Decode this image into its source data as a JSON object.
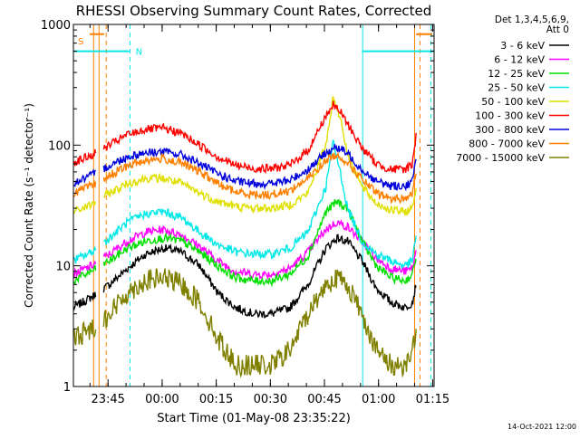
{
  "chart_data": {
    "type": "line",
    "title": "RHESSI Observing Summary Count Rates, Corrected",
    "xlabel": "Start Time (01-May-08 23:35:22)",
    "ylabel": "Corrected Count Rate (s⁻¹ detector⁻¹)",
    "yscale": "log",
    "ylim": [
      1,
      1000
    ],
    "xlim_minutes_after_start": [
      0,
      100
    ],
    "x_ticks": [
      {
        "label": "23:45",
        "t": 9.6
      },
      {
        "label": "00:00",
        "t": 24.6
      },
      {
        "label": "00:15",
        "t": 39.6
      },
      {
        "label": "00:30",
        "t": 54.6
      },
      {
        "label": "00:45",
        "t": 69.6
      },
      {
        "label": "01:00",
        "t": 84.6
      },
      {
        "label": "01:15",
        "t": 99.6
      }
    ],
    "y_ticks": [
      "1",
      "10",
      "100",
      "1000"
    ],
    "legend_header": [
      "Det 1,3,4,5,6,9,",
      "Att 0"
    ],
    "legend_position": "right",
    "series": [
      {
        "name": "3 - 6 keV",
        "color": "#000000",
        "t": [
          0,
          5,
          10,
          15,
          20,
          25,
          30,
          35,
          40,
          45,
          50,
          55,
          60,
          65,
          70,
          73,
          76,
          80,
          84,
          88,
          92,
          94,
          95
        ],
        "values": [
          4.5,
          5.5,
          7,
          9.5,
          12.5,
          14,
          13,
          10,
          6,
          4.5,
          4,
          4,
          4.5,
          7,
          14,
          17,
          16,
          11,
          6.5,
          5,
          4.5,
          5,
          7
        ]
      },
      {
        "name": "6 - 12 keV",
        "color": "#ff00ff",
        "t": [
          0,
          5,
          10,
          15,
          20,
          25,
          30,
          35,
          40,
          45,
          50,
          55,
          60,
          65,
          70,
          73,
          76,
          80,
          84,
          88,
          92,
          94,
          95
        ],
        "values": [
          8.5,
          10,
          12.5,
          16,
          19,
          20,
          18,
          14.5,
          11,
          9,
          8.5,
          8.5,
          9.5,
          13,
          20,
          23,
          21,
          16,
          11.5,
          9.5,
          9,
          9.5,
          13
        ]
      },
      {
        "name": "12 - 25 keV",
        "color": "#00e000",
        "t": [
          0,
          5,
          10,
          15,
          20,
          25,
          30,
          35,
          40,
          45,
          50,
          55,
          60,
          65,
          70,
          73,
          76,
          80,
          84,
          88,
          92,
          94,
          95
        ],
        "values": [
          7.5,
          9,
          11,
          14,
          16,
          17,
          16,
          13,
          10,
          8,
          7.5,
          7.5,
          8.5,
          12,
          28,
          34,
          30,
          16,
          10,
          8,
          7.5,
          8.5,
          12
        ]
      },
      {
        "name": "25 - 50 keV",
        "color": "#00e8e8",
        "t": [
          0,
          5,
          10,
          15,
          20,
          25,
          30,
          35,
          40,
          45,
          50,
          55,
          60,
          65,
          70,
          72,
          74,
          76,
          80,
          84,
          88,
          92,
          94,
          95
        ],
        "values": [
          11,
          13,
          17,
          23,
          27,
          28,
          25,
          19,
          15,
          13,
          12.5,
          12.5,
          14,
          19,
          45,
          105,
          60,
          30,
          16,
          12.5,
          11,
          10,
          11,
          18
        ]
      },
      {
        "name": "50 - 100 keV",
        "color": "#e0e000",
        "t": [
          0,
          5,
          10,
          15,
          20,
          25,
          30,
          35,
          40,
          45,
          50,
          55,
          60,
          65,
          70,
          72,
          74,
          76,
          80,
          84,
          88,
          92,
          94,
          95
        ],
        "values": [
          28,
          32,
          40,
          48,
          53,
          53,
          48,
          40,
          34,
          31,
          30,
          30,
          32,
          40,
          100,
          250,
          170,
          85,
          45,
          33,
          29,
          28,
          30,
          45
        ]
      },
      {
        "name": "100 - 300 keV",
        "color": "#ff0000",
        "t": [
          0,
          5,
          10,
          15,
          20,
          25,
          30,
          35,
          40,
          45,
          50,
          55,
          60,
          65,
          70,
          72,
          74,
          76,
          80,
          84,
          88,
          92,
          94,
          95
        ],
        "values": [
          72,
          82,
          100,
          122,
          135,
          138,
          125,
          100,
          80,
          68,
          64,
          64,
          68,
          90,
          175,
          215,
          190,
          150,
          95,
          70,
          63,
          63,
          70,
          120
        ]
      },
      {
        "name": "300 - 800 keV",
        "color": "#0000dd",
        "t": [
          0,
          5,
          10,
          15,
          20,
          25,
          30,
          35,
          40,
          45,
          50,
          55,
          60,
          65,
          70,
          72,
          74,
          76,
          80,
          84,
          88,
          92,
          94,
          95
        ],
        "values": [
          48,
          56,
          68,
          80,
          87,
          88,
          83,
          70,
          58,
          50,
          48,
          48,
          51,
          63,
          86,
          95,
          93,
          85,
          63,
          50,
          46,
          46,
          50,
          75
        ]
      },
      {
        "name": "800 - 7000 keV",
        "color": "#ff8000",
        "t": [
          0,
          5,
          10,
          15,
          20,
          25,
          30,
          35,
          40,
          45,
          50,
          55,
          60,
          65,
          70,
          72,
          74,
          76,
          80,
          84,
          88,
          92,
          94,
          95
        ],
        "values": [
          40,
          46,
          56,
          67,
          75,
          77,
          71,
          60,
          48,
          41,
          39,
          39,
          42,
          53,
          74,
          82,
          80,
          72,
          52,
          40,
          36,
          36,
          40,
          60
        ]
      },
      {
        "name": "7000 - 15000 keV",
        "color": "#808000",
        "t": [
          0,
          5,
          10,
          15,
          20,
          25,
          30,
          35,
          40,
          45,
          50,
          55,
          60,
          65,
          70,
          73,
          76,
          80,
          84,
          88,
          92,
          94,
          95
        ],
        "values": [
          2.5,
          3,
          4,
          6,
          7.5,
          8,
          7,
          5,
          2.5,
          1.5,
          1.5,
          1.5,
          2,
          4,
          7,
          8,
          7,
          4,
          2,
          1.5,
          1.5,
          2,
          3
        ]
      }
    ],
    "annotations": [
      {
        "label": "S",
        "color": "#ff8000",
        "t": 0.5,
        "value": 730
      },
      {
        "label": "N",
        "color": "#00e8e8",
        "t": 16.5,
        "value": 600
      }
    ],
    "flag_bars": [
      {
        "color": "#ff8000",
        "t0": 4.5,
        "t1": 8.5,
        "value": 830
      },
      {
        "color": "#00e8e8",
        "t0": -1,
        "t1": 15.5,
        "value": 600
      },
      {
        "color": "#00e8e8",
        "t0": 80,
        "t1": 101,
        "value": 600
      },
      {
        "color": "#ff8000",
        "t0": 95,
        "t1": 99.5,
        "value": 830
      }
    ],
    "vertical_markers": [
      {
        "t": 5.6,
        "color": "#ff8000",
        "style": "solid"
      },
      {
        "t": 7.1,
        "color": "#ff8000",
        "style": "solid"
      },
      {
        "t": 9.1,
        "color": "#ff8000",
        "style": "dashed"
      },
      {
        "t": 15.7,
        "color": "#00e8e8",
        "style": "dashed"
      },
      {
        "t": 80.2,
        "color": "#00e8e8",
        "style": "solid"
      },
      {
        "t": 94.6,
        "color": "#ff8000",
        "style": "solid"
      },
      {
        "t": 96.1,
        "color": "#ff8000",
        "style": "dashed"
      },
      {
        "t": 99.1,
        "color": "#00e8e8",
        "style": "dashed"
      }
    ]
  },
  "footer": {
    "timestamp": "14-Oct-2021 12:00"
  }
}
